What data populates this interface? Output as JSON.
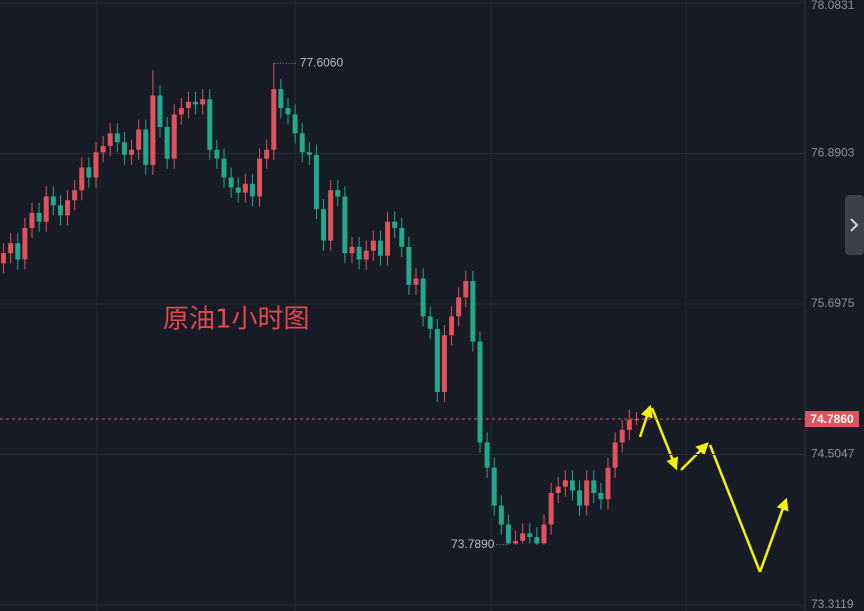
{
  "chart_data": {
    "type": "candlestick",
    "title": "原油1小时图",
    "ylim": [
      73.3119,
      78.0831
    ],
    "yticks": [
      73.3119,
      74.5047,
      75.6975,
      76.8903,
      78.0831
    ],
    "grid": true,
    "up_color": "#e0525c",
    "down_color": "#22a98d",
    "last_price": {
      "value": 74.786,
      "label": "74.7860"
    },
    "annotations": [
      {
        "value": 77.606,
        "label": "77.6060"
      },
      {
        "value": 73.789,
        "label": "73.7890"
      }
    ],
    "series": [
      {
        "open": [
          76.02,
          76.1,
          76.18,
          76.05,
          76.3,
          76.42,
          76.35,
          76.55,
          76.48,
          76.4,
          76.52,
          76.6,
          76.78,
          76.7,
          76.9,
          76.95,
          77.05,
          76.98,
          76.88,
          76.92,
          77.08,
          76.8,
          77.35,
          77.1,
          76.85,
          77.2,
          77.25,
          77.3,
          77.28,
          77.32,
          76.92,
          76.85,
          76.7,
          76.62,
          76.58,
          76.65,
          76.55,
          76.85,
          76.92,
          77.4,
          77.25,
          77.2,
          77.05,
          76.9,
          76.88,
          76.45,
          76.2,
          76.6,
          76.55,
          76.1,
          76.15,
          76.05,
          76.12,
          76.2,
          76.08,
          76.35,
          76.3,
          76.15,
          75.85,
          75.9,
          75.6,
          75.5,
          75.0,
          75.45,
          75.6,
          75.75,
          75.88,
          75.4,
          74.6,
          74.4,
          74.1,
          73.95,
          73.8,
          73.82,
          73.88,
          73.85,
          73.8,
          73.95,
          74.2,
          74.25,
          74.3,
          74.22,
          74.1,
          74.3,
          74.2,
          74.15,
          74.4,
          74.6,
          74.7,
          74.78
        ],
        "high": [
          76.18,
          76.26,
          76.26,
          76.38,
          76.5,
          76.5,
          76.63,
          76.63,
          76.56,
          76.6,
          76.68,
          76.86,
          76.86,
          76.98,
          77.03,
          77.13,
          77.13,
          77.06,
          77.0,
          77.16,
          77.16,
          77.55,
          77.43,
          77.18,
          77.28,
          77.33,
          77.38,
          77.38,
          77.4,
          77.4,
          77.0,
          76.93,
          76.78,
          76.7,
          76.73,
          76.73,
          76.93,
          77.0,
          77.606,
          77.48,
          77.33,
          77.28,
          77.13,
          76.98,
          76.96,
          76.53,
          76.68,
          76.68,
          76.63,
          76.23,
          76.23,
          76.2,
          76.28,
          76.28,
          76.43,
          76.43,
          76.38,
          76.23,
          75.98,
          75.98,
          75.68,
          75.58,
          75.53,
          75.68,
          75.83,
          75.96,
          75.96,
          75.48,
          74.68,
          74.48,
          74.18,
          74.03,
          73.9,
          73.96,
          73.96,
          73.93,
          74.03,
          74.28,
          74.33,
          74.38,
          74.38,
          74.3,
          74.38,
          74.38,
          74.28,
          74.48,
          74.68,
          74.78,
          74.86,
          74.84
        ],
        "low": [
          75.94,
          76.02,
          75.97,
          75.97,
          76.22,
          76.27,
          76.27,
          76.4,
          76.32,
          76.32,
          76.44,
          76.52,
          76.62,
          76.62,
          76.82,
          76.87,
          76.9,
          76.8,
          76.8,
          76.84,
          76.72,
          76.72,
          77.02,
          76.77,
          76.77,
          77.12,
          77.17,
          77.2,
          77.2,
          76.84,
          76.77,
          76.62,
          76.54,
          76.5,
          76.5,
          76.47,
          76.47,
          76.77,
          76.84,
          77.17,
          77.12,
          76.97,
          76.82,
          76.8,
          76.37,
          76.12,
          76.12,
          76.47,
          76.02,
          76.02,
          75.97,
          75.97,
          76.04,
          76.0,
          76.0,
          76.22,
          76.07,
          75.77,
          75.77,
          75.52,
          75.42,
          74.92,
          74.92,
          75.37,
          75.52,
          75.67,
          75.32,
          74.52,
          74.32,
          74.02,
          73.87,
          73.789,
          73.79,
          73.8,
          73.8,
          73.79,
          73.79,
          73.87,
          74.12,
          74.17,
          74.14,
          74.02,
          74.02,
          74.12,
          74.07,
          74.07,
          74.32,
          74.52,
          74.62,
          74.74
        ],
        "close": [
          76.1,
          76.18,
          76.05,
          76.3,
          76.42,
          76.35,
          76.55,
          76.48,
          76.4,
          76.52,
          76.6,
          76.78,
          76.7,
          76.9,
          76.95,
          77.05,
          76.98,
          76.88,
          76.92,
          77.08,
          76.8,
          77.35,
          77.1,
          76.85,
          77.2,
          77.25,
          77.3,
          77.28,
          77.32,
          76.92,
          76.85,
          76.7,
          76.62,
          76.58,
          76.65,
          76.55,
          76.85,
          76.92,
          77.4,
          77.25,
          77.2,
          77.05,
          76.9,
          76.88,
          76.45,
          76.2,
          76.6,
          76.55,
          76.1,
          76.15,
          76.05,
          76.12,
          76.2,
          76.08,
          76.35,
          76.3,
          76.15,
          75.85,
          75.9,
          75.6,
          75.5,
          75.0,
          75.45,
          75.6,
          75.75,
          75.88,
          75.4,
          74.6,
          74.4,
          74.1,
          73.95,
          73.8,
          73.82,
          73.88,
          73.85,
          73.8,
          73.95,
          74.2,
          74.25,
          74.3,
          74.22,
          74.1,
          74.3,
          74.2,
          74.15,
          74.4,
          74.6,
          74.7,
          74.78,
          74.786
        ]
      }
    ]
  }
}
